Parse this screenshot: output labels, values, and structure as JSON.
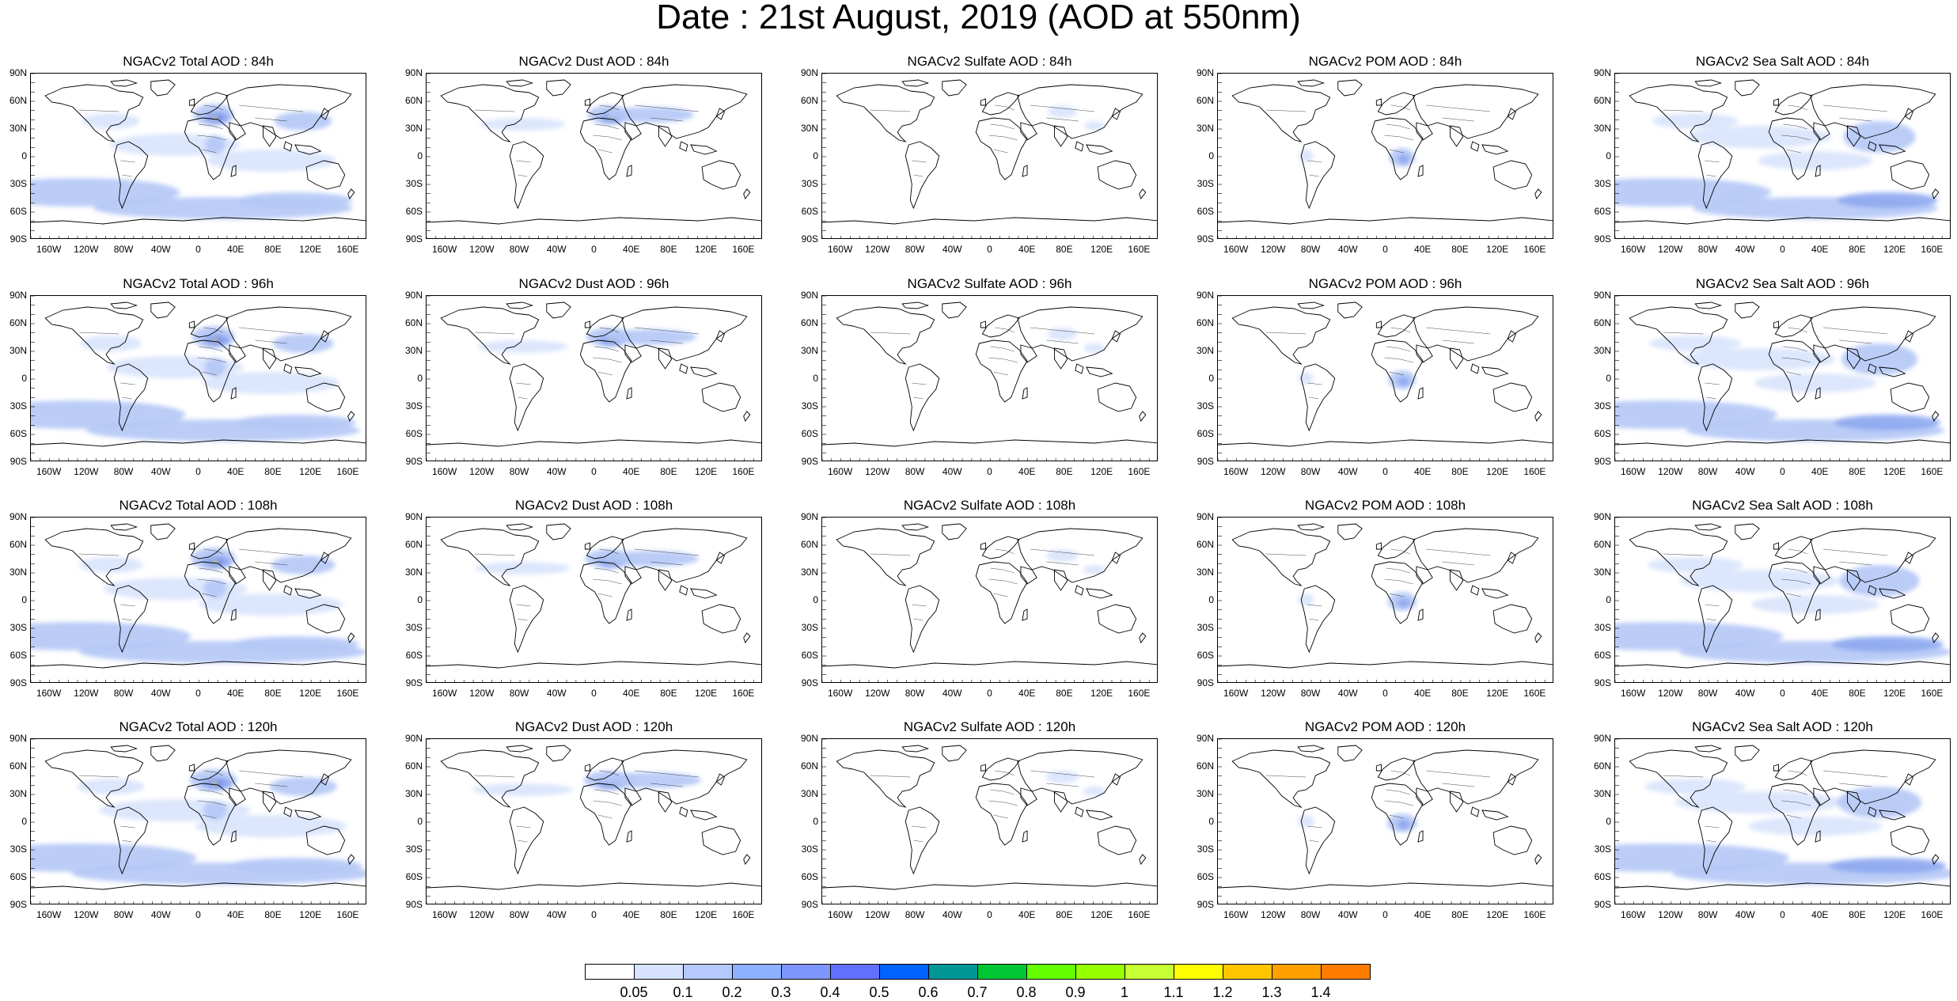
{
  "title": "Date : 21st August, 2019 (AOD at 550nm)",
  "panels": [
    [
      "NGACv2 Total AOD : 84h",
      "NGACv2 Dust AOD : 84h",
      "NGACv2 Sulfate AOD : 84h",
      "NGACv2 POM AOD : 84h",
      "NGACv2 Sea Salt AOD : 84h"
    ],
    [
      "NGACv2 Total AOD : 96h",
      "NGACv2 Dust AOD : 96h",
      "NGACv2 Sulfate AOD : 96h",
      "NGACv2 POM AOD : 96h",
      "NGACv2 Sea Salt AOD : 96h"
    ],
    [
      "NGACv2 Total AOD : 108h",
      "NGACv2 Dust AOD : 108h",
      "NGACv2 Sulfate AOD : 108h",
      "NGACv2 POM AOD : 108h",
      "NGACv2 Sea Salt AOD : 108h"
    ],
    [
      "NGACv2 Total AOD : 120h",
      "NGACv2 Dust AOD : 120h",
      "NGACv2 Sulfate AOD : 120h",
      "NGACv2 POM AOD : 120h",
      "NGACv2 Sea Salt  AOD : 120h"
    ]
  ],
  "lat_ticks": [
    "90N",
    "60N",
    "30N",
    "0",
    "30S",
    "60S",
    "90S"
  ],
  "lon_ticks": [
    "160W",
    "120W",
    "80W",
    "40W",
    "0",
    "40E",
    "80E",
    "120E",
    "160E"
  ],
  "colorbar": {
    "labels": [
      "0.05",
      "0.1",
      "0.2",
      "0.3",
      "0.4",
      "0.5",
      "0.6",
      "0.7",
      "0.8",
      "0.9",
      "1",
      "1.1",
      "1.2",
      "1.3",
      "1.4"
    ],
    "colors": [
      "#ffffff",
      "#d6e2ff",
      "#b5c9ff",
      "#8eb2ff",
      "#7f96ff",
      "#6370ff",
      "#0063ff",
      "#009696",
      "#00c633",
      "#63ff00",
      "#96ff00",
      "#c6ff33",
      "#ffff00",
      "#ffc600",
      "#ffa000",
      "#ff7c00",
      "#ff1900"
    ]
  },
  "colors": {
    "coast": "#000000",
    "aerosol_low": "#c8d6fa",
    "aerosol_mid": "#8ea8f0",
    "aerosol_high": "#6b7ce6",
    "dust_core": "#7cc63a",
    "dust_peak": "#f2f200"
  }
}
